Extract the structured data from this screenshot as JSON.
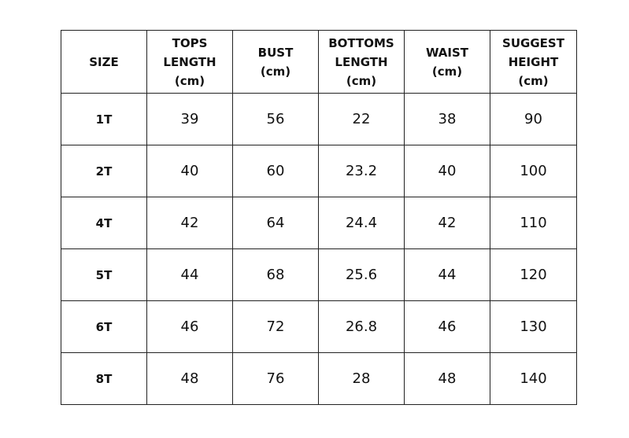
{
  "table": {
    "headers": [
      [
        "SIZE"
      ],
      [
        "TOPS",
        "LENGTH",
        "(cm)"
      ],
      [
        "BUST",
        "(cm)"
      ],
      [
        "BOTTOMS",
        "LENGTH",
        "(cm)"
      ],
      [
        "WAIST",
        "(cm)"
      ],
      [
        "SUGGEST",
        "HEIGHT",
        "(cm)"
      ]
    ],
    "rows": [
      [
        "1T",
        "39",
        "56",
        "22",
        "38",
        "90"
      ],
      [
        "2T",
        "40",
        "60",
        "23.2",
        "40",
        "100"
      ],
      [
        "4T",
        "42",
        "64",
        "24.4",
        "42",
        "110"
      ],
      [
        "5T",
        "44",
        "68",
        "25.6",
        "44",
        "120"
      ],
      [
        "6T",
        "46",
        "72",
        "26.8",
        "46",
        "130"
      ],
      [
        "8T",
        "48",
        "76",
        "28",
        "48",
        "140"
      ]
    ]
  }
}
